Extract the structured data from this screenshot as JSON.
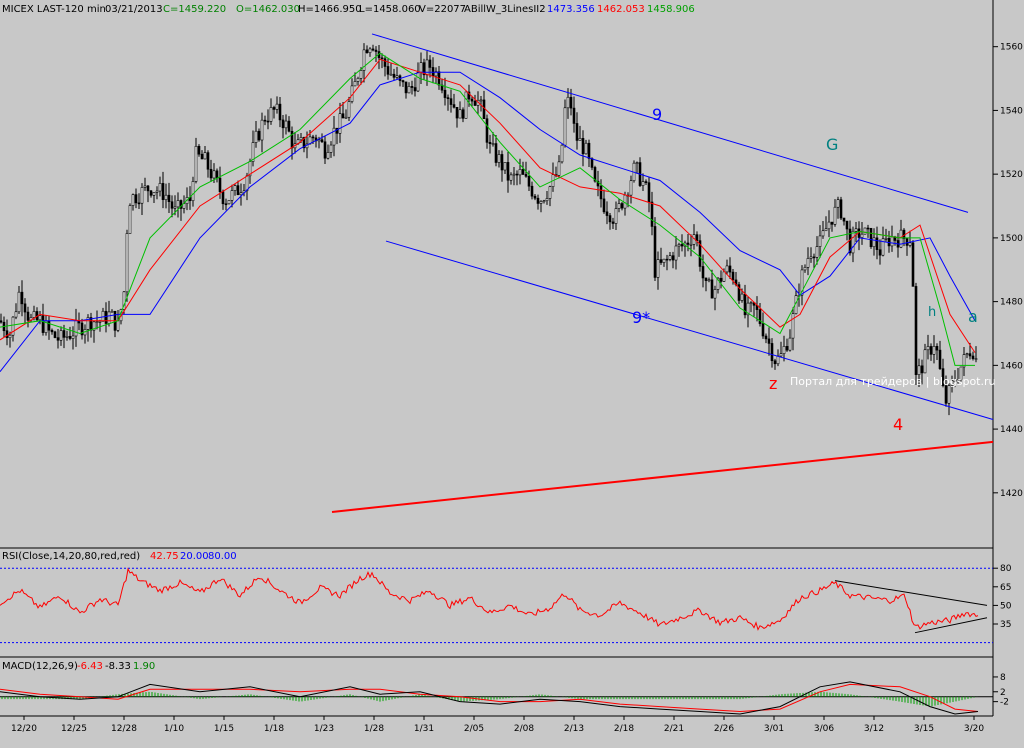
{
  "header": {
    "symbol": "MICEX LAST-120 min",
    "date": "03/21/2013",
    "close": "C=1459.220",
    "open": "O=1462.030",
    "high": "H=1466.950",
    "low": "L=1458.060",
    "volume": "V=22077",
    "indicator": "ABillW_3LinesII2",
    "ind_v1": "1473.356",
    "ind_v2": "1462.053",
    "ind_v3": "1458.906"
  },
  "rsi": {
    "title": "RSI(Close,14,20,80,red,red)",
    "value": "42.75",
    "low": "20.00",
    "high": "80.00",
    "levels": [
      20,
      80
    ]
  },
  "macd": {
    "title": "MACD(12,26,9)",
    "macd": "-6.43",
    "signal": "-8.33",
    "hist": "1.90"
  },
  "annotations": {
    "nine": "9",
    "g": "G",
    "nine_star": "9*",
    "h": "h",
    "a": "a",
    "z": "z",
    "four": "4",
    "watermark": "Портал для трейдеров | blogspot.ru"
  },
  "colors": {
    "candle": "#000000",
    "ma_blue": "#0000ff",
    "ma_red": "#ff0000",
    "ma_green": "#00c000",
    "trend_blue": "#0000ff",
    "trend_red": "#ff0000",
    "rsi_line": "#ff0000",
    "macd_line": "#000000",
    "signal_line": "#ff0000",
    "hist": "#00a000"
  },
  "chart_data": {
    "type": "candlestick",
    "title": "MICEX LAST-120 min",
    "y_ticks": [
      1420,
      1440,
      1460,
      1480,
      1500,
      1520,
      1540,
      1560
    ],
    "ylim": [
      1403,
      1569
    ],
    "x_tick_labels": [
      "12/20",
      "12/25",
      "12/28",
      "1/10",
      "1/15",
      "1/18",
      "1/23",
      "1/28",
      "1/31",
      "2/05",
      "2/08",
      "2/13",
      "2/18",
      "2/21",
      "2/26",
      "3/01",
      "3/06",
      "3/12",
      "3/15",
      "3/20"
    ],
    "close_path": [
      [
        0,
        1474
      ],
      [
        10,
        1470
      ],
      [
        20,
        1484
      ],
      [
        30,
        1474
      ],
      [
        40,
        1474
      ],
      [
        50,
        1470
      ],
      [
        60,
        1468
      ],
      [
        70,
        1470
      ],
      [
        80,
        1472
      ],
      [
        90,
        1474
      ],
      [
        100,
        1474
      ],
      [
        110,
        1476
      ],
      [
        118,
        1472
      ],
      [
        125,
        1485
      ],
      [
        128,
        1512
      ],
      [
        140,
        1514
      ],
      [
        150,
        1516
      ],
      [
        165,
        1514
      ],
      [
        175,
        1508
      ],
      [
        190,
        1512
      ],
      [
        195,
        1526
      ],
      [
        205,
        1524
      ],
      [
        215,
        1518
      ],
      [
        225,
        1512
      ],
      [
        235,
        1514
      ],
      [
        245,
        1518
      ],
      [
        255,
        1530
      ],
      [
        265,
        1538
      ],
      [
        275,
        1540
      ],
      [
        285,
        1536
      ],
      [
        295,
        1528
      ],
      [
        305,
        1530
      ],
      [
        315,
        1532
      ],
      [
        325,
        1528
      ],
      [
        335,
        1534
      ],
      [
        345,
        1538
      ],
      [
        355,
        1548
      ],
      [
        365,
        1560
      ],
      [
        372,
        1562
      ],
      [
        380,
        1556
      ],
      [
        390,
        1552
      ],
      [
        400,
        1548
      ],
      [
        410,
        1546
      ],
      [
        420,
        1552
      ],
      [
        430,
        1554
      ],
      [
        440,
        1550
      ],
      [
        450,
        1544
      ],
      [
        460,
        1538
      ],
      [
        470,
        1546
      ],
      [
        480,
        1542
      ],
      [
        490,
        1528
      ],
      [
        500,
        1524
      ],
      [
        510,
        1518
      ],
      [
        520,
        1520
      ],
      [
        530,
        1516
      ],
      [
        540,
        1512
      ],
      [
        550,
        1516
      ],
      [
        560,
        1522
      ],
      [
        565,
        1540
      ],
      [
        570,
        1544
      ],
      [
        575,
        1532
      ],
      [
        585,
        1528
      ],
      [
        595,
        1516
      ],
      [
        605,
        1510
      ],
      [
        615,
        1506
      ],
      [
        625,
        1514
      ],
      [
        635,
        1522
      ],
      [
        645,
        1516
      ],
      [
        650,
        1510
      ],
      [
        655,
        1490
      ],
      [
        665,
        1492
      ],
      [
        675,
        1496
      ],
      [
        685,
        1498
      ],
      [
        695,
        1502
      ],
      [
        705,
        1484
      ],
      [
        715,
        1484
      ],
      [
        725,
        1490
      ],
      [
        735,
        1488
      ],
      [
        745,
        1476
      ],
      [
        755,
        1478
      ],
      [
        765,
        1470
      ],
      [
        775,
        1462
      ],
      [
        780,
        1462
      ],
      [
        790,
        1470
      ],
      [
        800,
        1486
      ],
      [
        810,
        1496
      ],
      [
        820,
        1498
      ],
      [
        830,
        1506
      ],
      [
        840,
        1510
      ],
      [
        850,
        1498
      ],
      [
        860,
        1502
      ],
      [
        870,
        1500
      ],
      [
        880,
        1496
      ],
      [
        890,
        1500
      ],
      [
        900,
        1500
      ],
      [
        910,
        1500
      ],
      [
        913,
        1486
      ],
      [
        916,
        1456
      ],
      [
        925,
        1462
      ],
      [
        935,
        1468
      ],
      [
        945,
        1448
      ],
      [
        955,
        1456
      ],
      [
        965,
        1462
      ],
      [
        972,
        1466
      ],
      [
        978,
        1460
      ]
    ],
    "series": [
      {
        "name": "1473.356",
        "color": "#0000ff",
        "points": [
          [
            0,
            1458
          ],
          [
            40,
            1474
          ],
          [
            80,
            1474
          ],
          [
            118,
            1476
          ],
          [
            150,
            1476
          ],
          [
            200,
            1500
          ],
          [
            250,
            1516
          ],
          [
            300,
            1528
          ],
          [
            350,
            1536
          ],
          [
            380,
            1548
          ],
          [
            420,
            1552
          ],
          [
            460,
            1552
          ],
          [
            500,
            1544
          ],
          [
            540,
            1534
          ],
          [
            580,
            1526
          ],
          [
            620,
            1522
          ],
          [
            660,
            1518
          ],
          [
            700,
            1508
          ],
          [
            740,
            1496
          ],
          [
            780,
            1490
          ],
          [
            800,
            1482
          ],
          [
            830,
            1488
          ],
          [
            860,
            1500
          ],
          [
            900,
            1498
          ],
          [
            930,
            1500
          ],
          [
            950,
            1488
          ],
          [
            975,
            1474
          ]
        ]
      },
      {
        "name": "1462.053",
        "color": "#ff0000",
        "points": [
          [
            0,
            1468
          ],
          [
            40,
            1476
          ],
          [
            80,
            1474
          ],
          [
            118,
            1474
          ],
          [
            150,
            1490
          ],
          [
            200,
            1510
          ],
          [
            250,
            1520
          ],
          [
            300,
            1530
          ],
          [
            350,
            1544
          ],
          [
            380,
            1556
          ],
          [
            420,
            1552
          ],
          [
            460,
            1548
          ],
          [
            500,
            1536
          ],
          [
            540,
            1522
          ],
          [
            580,
            1516
          ],
          [
            620,
            1514
          ],
          [
            660,
            1510
          ],
          [
            700,
            1498
          ],
          [
            740,
            1484
          ],
          [
            780,
            1472
          ],
          [
            800,
            1476
          ],
          [
            830,
            1494
          ],
          [
            860,
            1502
          ],
          [
            900,
            1500
          ],
          [
            920,
            1504
          ],
          [
            950,
            1476
          ],
          [
            975,
            1464
          ]
        ]
      },
      {
        "name": "1458.906",
        "color": "#00c000",
        "points": [
          [
            0,
            1472
          ],
          [
            40,
            1474
          ],
          [
            80,
            1470
          ],
          [
            118,
            1474
          ],
          [
            150,
            1500
          ],
          [
            200,
            1516
          ],
          [
            250,
            1524
          ],
          [
            300,
            1534
          ],
          [
            350,
            1550
          ],
          [
            380,
            1558
          ],
          [
            420,
            1550
          ],
          [
            460,
            1546
          ],
          [
            500,
            1530
          ],
          [
            540,
            1516
          ],
          [
            580,
            1522
          ],
          [
            620,
            1512
          ],
          [
            660,
            1504
          ],
          [
            700,
            1494
          ],
          [
            740,
            1478
          ],
          [
            780,
            1470
          ],
          [
            800,
            1482
          ],
          [
            830,
            1500
          ],
          [
            860,
            1502
          ],
          [
            900,
            1500
          ],
          [
            920,
            1500
          ],
          [
            940,
            1478
          ],
          [
            955,
            1460
          ],
          [
            975,
            1460
          ]
        ]
      }
    ],
    "trendlines": [
      {
        "label": "9",
        "color": "#0000ff",
        "points": [
          [
            372,
            1564
          ],
          [
            968,
            1508
          ]
        ]
      },
      {
        "label": "9*",
        "color": "#0000ff",
        "points": [
          [
            386,
            1499
          ],
          [
            993,
            1443
          ]
        ]
      },
      {
        "label": "4",
        "color": "#ff0000",
        "points": [
          [
            332,
            1414
          ],
          [
            993,
            1436
          ]
        ]
      }
    ],
    "rsi": {
      "y_ticks": [
        35,
        50,
        65,
        80
      ],
      "ylim": [
        10,
        85
      ],
      "points": [
        [
          0,
          52
        ],
        [
          20,
          62
        ],
        [
          40,
          48
        ],
        [
          60,
          58
        ],
        [
          80,
          44
        ],
        [
          100,
          55
        ],
        [
          118,
          50
        ],
        [
          128,
          78
        ],
        [
          140,
          70
        ],
        [
          160,
          62
        ],
        [
          180,
          68
        ],
        [
          200,
          60
        ],
        [
          220,
          72
        ],
        [
          240,
          58
        ],
        [
          260,
          74
        ],
        [
          280,
          62
        ],
        [
          300,
          52
        ],
        [
          320,
          64
        ],
        [
          340,
          58
        ],
        [
          360,
          72
        ],
        [
          372,
          76
        ],
        [
          390,
          60
        ],
        [
          410,
          54
        ],
        [
          430,
          62
        ],
        [
          450,
          50
        ],
        [
          470,
          56
        ],
        [
          490,
          44
        ],
        [
          510,
          50
        ],
        [
          530,
          42
        ],
        [
          550,
          48
        ],
        [
          565,
          60
        ],
        [
          580,
          46
        ],
        [
          600,
          42
        ],
        [
          620,
          52
        ],
        [
          640,
          44
        ],
        [
          660,
          34
        ],
        [
          680,
          40
        ],
        [
          700,
          46
        ],
        [
          720,
          36
        ],
        [
          740,
          40
        ],
        [
          760,
          32
        ],
        [
          780,
          38
        ],
        [
          800,
          56
        ],
        [
          820,
          62
        ],
        [
          835,
          68
        ],
        [
          850,
          58
        ],
        [
          870,
          56
        ],
        [
          890,
          54
        ],
        [
          905,
          58
        ],
        [
          915,
          32
        ],
        [
          930,
          36
        ],
        [
          950,
          38
        ],
        [
          965,
          44
        ],
        [
          978,
          42
        ]
      ]
    },
    "rsi_trendlines": [
      {
        "points": [
          [
            835,
            70
          ],
          [
            987,
            50
          ]
        ]
      },
      {
        "points": [
          [
            915,
            28
          ],
          [
            987,
            40
          ]
        ]
      }
    ],
    "macd": {
      "y_ticks": [
        -2,
        2,
        8
      ],
      "ylim": [
        -7,
        10
      ],
      "macd_line": [
        [
          0,
          2
        ],
        [
          40,
          0
        ],
        [
          80,
          -1
        ],
        [
          118,
          0
        ],
        [
          150,
          5
        ],
        [
          200,
          2
        ],
        [
          250,
          4
        ],
        [
          300,
          0
        ],
        [
          350,
          4
        ],
        [
          380,
          1
        ],
        [
          420,
          2
        ],
        [
          460,
          -2
        ],
        [
          500,
          -3
        ],
        [
          540,
          -1
        ],
        [
          580,
          -2
        ],
        [
          620,
          -4
        ],
        [
          660,
          -5
        ],
        [
          700,
          -6
        ],
        [
          740,
          -7
        ],
        [
          780,
          -4
        ],
        [
          820,
          4
        ],
        [
          850,
          6
        ],
        [
          900,
          2
        ],
        [
          930,
          -4
        ],
        [
          955,
          -7
        ],
        [
          978,
          -6
        ]
      ],
      "signal_line": [
        [
          0,
          3
        ],
        [
          40,
          1
        ],
        [
          80,
          0
        ],
        [
          118,
          -1
        ],
        [
          150,
          3
        ],
        [
          200,
          3
        ],
        [
          250,
          3
        ],
        [
          300,
          2
        ],
        [
          350,
          3
        ],
        [
          380,
          3
        ],
        [
          420,
          1
        ],
        [
          460,
          0
        ],
        [
          500,
          -2
        ],
        [
          540,
          -2
        ],
        [
          580,
          -1
        ],
        [
          620,
          -3
        ],
        [
          660,
          -4
        ],
        [
          700,
          -5
        ],
        [
          740,
          -6
        ],
        [
          780,
          -5
        ],
        [
          820,
          2
        ],
        [
          850,
          5
        ],
        [
          900,
          4
        ],
        [
          930,
          0
        ],
        [
          955,
          -5
        ],
        [
          978,
          -6
        ]
      ]
    }
  }
}
